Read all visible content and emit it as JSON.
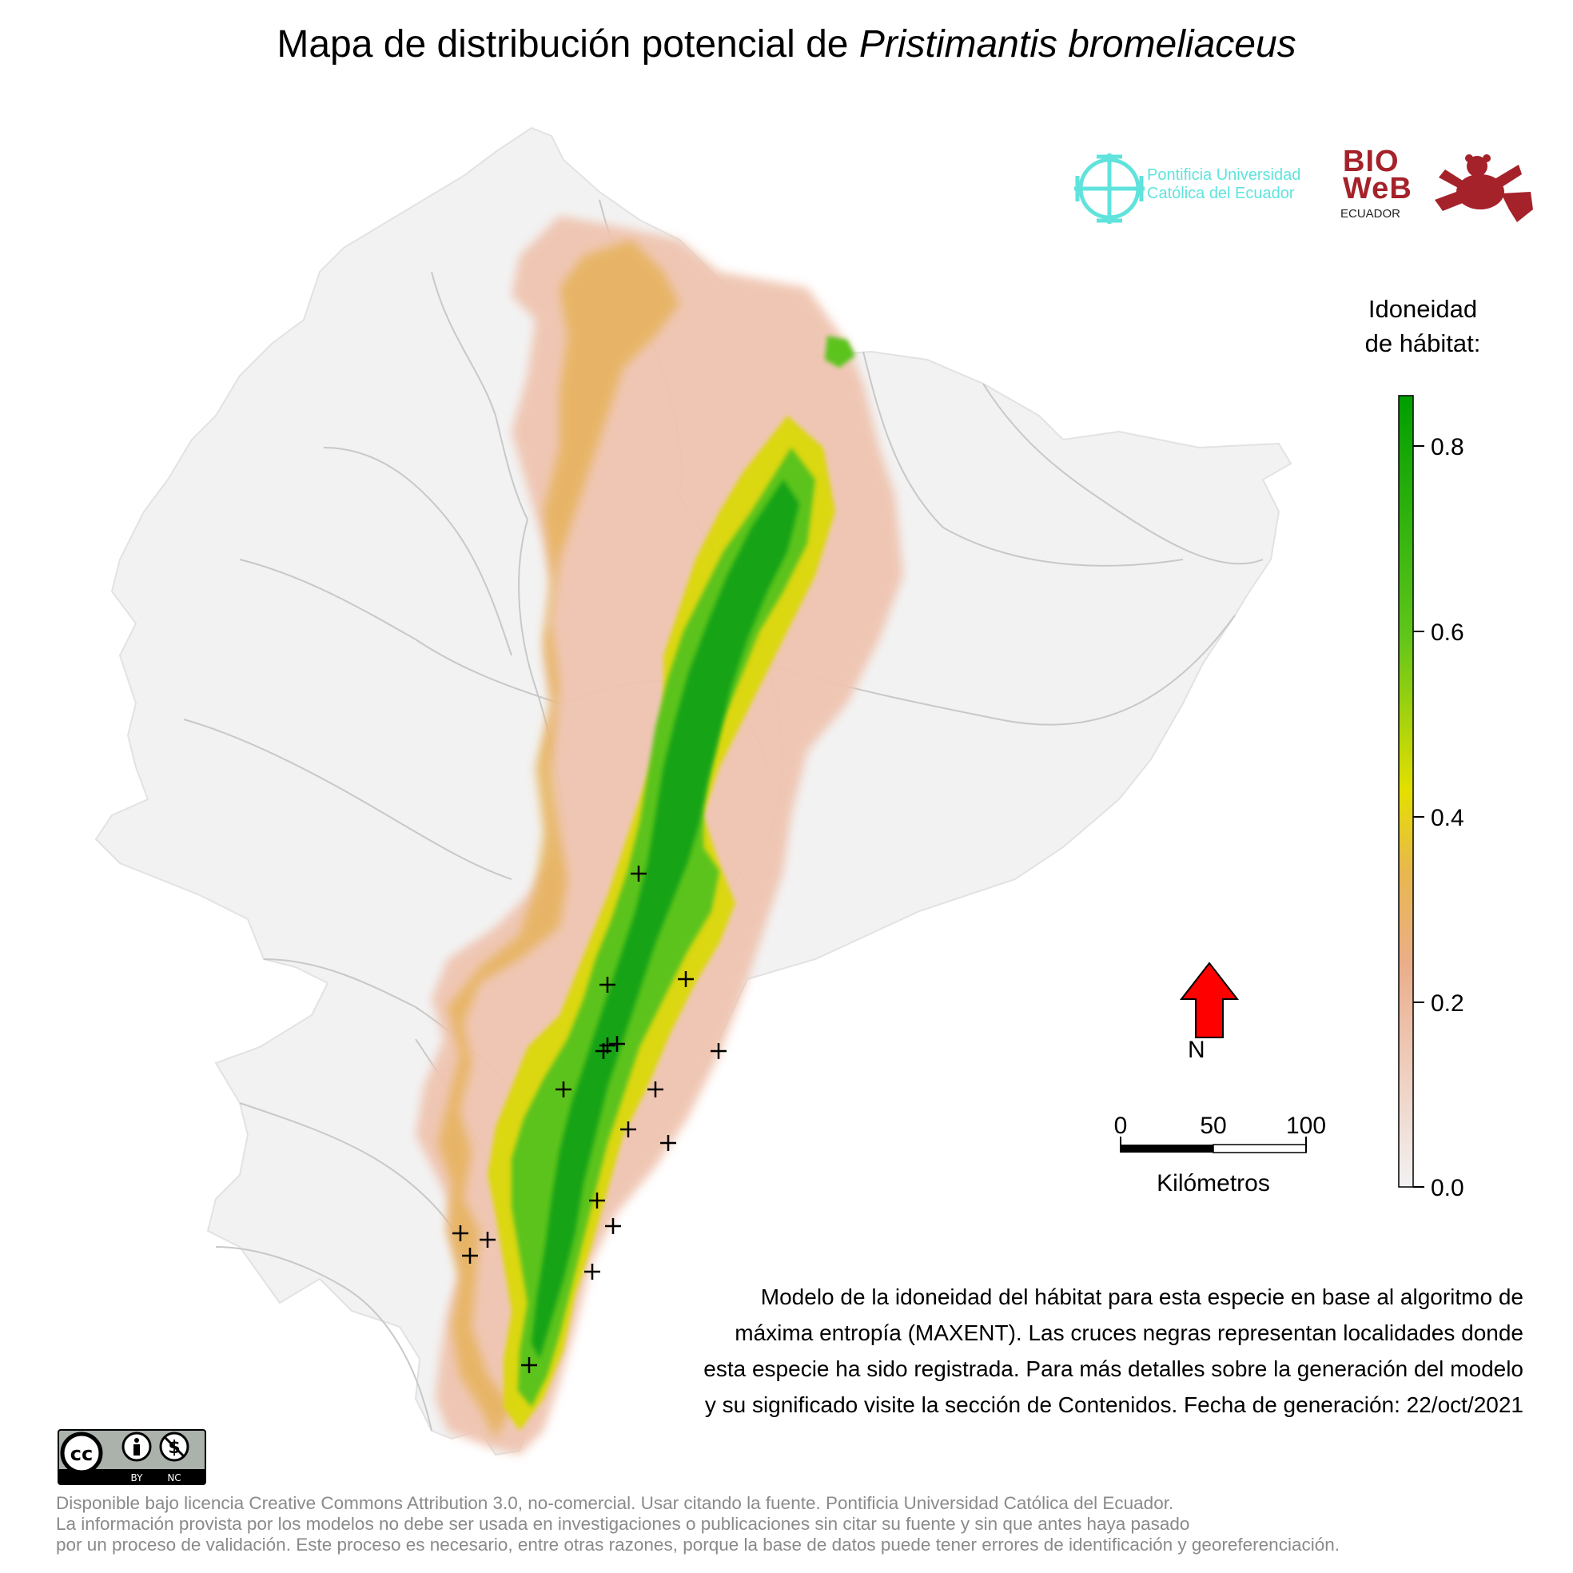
{
  "title": {
    "prefix": "Mapa de distribución potencial de ",
    "species": "Pristimantis bromeliaceus"
  },
  "logos": {
    "puce": {
      "line1": "Pontificia Universidad",
      "line2": "Católica del Ecuador",
      "color": "#5fe3dc"
    },
    "bioweb": {
      "line1": "BIO",
      "line2": "WeB",
      "line3": "ECUADOR",
      "color": "#a5222b"
    }
  },
  "legend": {
    "title_line1": "Idoneidad",
    "title_line2": "de hábitat:",
    "range": [
      0.0,
      0.85
    ],
    "ticks": [
      {
        "value": 0.8,
        "label": "0.8"
      },
      {
        "value": 0.6,
        "label": "0.6"
      },
      {
        "value": 0.4,
        "label": "0.4"
      },
      {
        "value": 0.2,
        "label": "0.2"
      },
      {
        "value": 0.0,
        "label": "0.0"
      }
    ],
    "color_stops": [
      "#f2f2f2",
      "#efc9b8",
      "#eaa984",
      "#e8b647",
      "#e6e000",
      "#5ec51a",
      "#009e00"
    ]
  },
  "north_arrow": {
    "label": "N",
    "color": "#ff0000"
  },
  "scale_bar": {
    "ticks": [
      "0",
      "50",
      "100"
    ],
    "unit": "Kilómetros"
  },
  "description": [
    "Modelo de la idoneidad del hábitat para esta especie en base al algoritmo de",
    "máxima entropía (MAXENT). Las cruces negras representan localidades donde",
    "esta especie ha sido registrada. Para más detalles sobre la generación del modelo",
    "y su significado visite la sección de Contenidos. Fecha de generación: 22/oct/2021"
  ],
  "license_badge": {
    "by": "BY",
    "nc": "NC"
  },
  "footer": [
    "Disponible bajo licencia Creative Commons Attribution 3.0, no-comercial. Usar citando la fuente. Pontificia Universidad Católica del Ecuador.",
    "La información provista por los modelos no debe ser usada en investigaciones o publicaciones sin citar su fuente y sin que antes haya pasado",
    "por un proceso de validación. Este proceso es necesario, entre otras razones, porque la base de datos puede tener errores de identificación y georeferenciación."
  ],
  "map_layers": {
    "country_fill": "#f2f2f2",
    "border_color": "#c8c8c8",
    "low_suitability_color": "#efc4b0",
    "mid_suitability_color": "#e6b25a",
    "transition_color": "#d9d900",
    "high_suitability_color": "#5bc31c",
    "peak_suitability_color": "#17a317",
    "record_marker_color": "#000000"
  }
}
